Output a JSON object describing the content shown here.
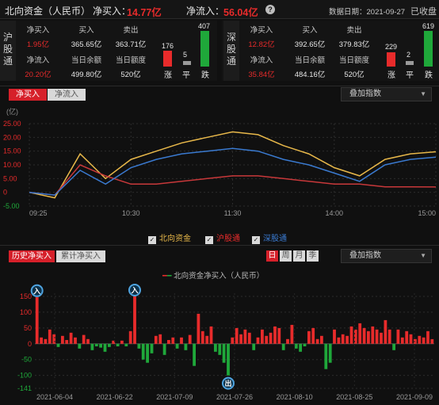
{
  "header": {
    "title": "北向资金（人民币）",
    "net_buy_label": "净买入：",
    "net_buy_value": "14.77亿",
    "net_inflow_label": "净流入：",
    "net_inflow_value": "56.04亿",
    "help_icon": "?",
    "date_label": "数据日期：2021-09-27",
    "status": "已收盘"
  },
  "sh": {
    "label": "沪股通",
    "net_buy_label": "净买入",
    "net_buy_value": "1.95亿",
    "buy_label": "买入",
    "buy_value": "365.65亿",
    "sell_label": "卖出",
    "sell_value": "363.71亿",
    "net_inflow_label": "净流入",
    "net_inflow_value": "20.20亿",
    "balance_label": "当日余额",
    "balance_value": "499.80亿",
    "quota_label": "当日额度",
    "quota_value": "520亿",
    "up_count": "176",
    "flat_count": "5",
    "down_count": "407",
    "up_label": "涨",
    "flat_label": "平",
    "down_label": "跌"
  },
  "sz": {
    "label": "深股通",
    "net_buy_label": "净买入",
    "net_buy_value": "12.82亿",
    "buy_label": "买入",
    "buy_value": "392.65亿",
    "sell_label": "卖出",
    "sell_value": "379.83亿",
    "net_inflow_label": "净流入",
    "net_inflow_value": "35.84亿",
    "balance_label": "当日余额",
    "balance_value": "484.16亿",
    "quota_label": "当日额度",
    "quota_value": "520亿",
    "up_count": "229",
    "flat_count": "2",
    "down_count": "619",
    "up_label": "涨",
    "flat_label": "平",
    "down_label": "跌"
  },
  "intraday": {
    "tab_net_buy": "净买入",
    "tab_net_inflow": "净流入",
    "overlay_label": "叠加指数",
    "unit": "(亿)",
    "legend": {
      "north": "北向资金",
      "sh": "沪股通",
      "sz": "深股通"
    }
  },
  "history": {
    "tab_history": "历史净买入",
    "tab_cumulative": "累计净买入",
    "period_day": "日",
    "period_week": "周",
    "period_month": "月",
    "period_quarter": "季",
    "overlay_label": "叠加指数",
    "legend": "北向资金净买入（人民币）",
    "marker_in": "入",
    "marker_out": "出"
  },
  "colors": {
    "red": "#e82b2b",
    "green": "#1fa83a",
    "gold": "#e8b84a",
    "blue": "#3a7ad0",
    "darkred": "#c8383a"
  },
  "chart_data": [
    {
      "type": "line",
      "ylim": [
        -5,
        25
      ],
      "yticks": [
        "25.00",
        "20.00",
        "15.00",
        "10.00",
        "5.00",
        "0",
        "-5.00"
      ],
      "xticks": [
        "09:25",
        "10:30",
        "11:30",
        "14:00",
        "15:00"
      ],
      "x": [
        "09:25",
        "09:40",
        "09:55",
        "10:10",
        "10:30",
        "10:45",
        "11:00",
        "11:15",
        "11:30",
        "13:15",
        "13:30",
        "13:45",
        "14:00",
        "14:15",
        "14:30",
        "14:45",
        "15:00"
      ],
      "series": [
        {
          "name": "北向资金",
          "values": [
            0,
            -2,
            14,
            5,
            12,
            15,
            18,
            20,
            22,
            21,
            17,
            14,
            9,
            6,
            12,
            14,
            14.77
          ]
        },
        {
          "name": "沪股通",
          "values": [
            0,
            -1,
            10,
            6,
            3,
            3,
            4,
            5,
            6,
            6,
            5,
            4,
            3,
            3,
            2,
            2,
            1.95
          ]
        },
        {
          "name": "深股通",
          "values": [
            0,
            -1,
            8,
            3,
            9,
            12,
            14,
            15,
            16,
            15,
            12,
            10,
            7,
            4,
            10,
            12,
            12.82
          ]
        }
      ]
    },
    {
      "type": "bar",
      "yticks": [
        "150",
        "100",
        "50",
        "0",
        "-50",
        "-100",
        "-141"
      ],
      "xticks": [
        "2021-06-04",
        "2021-06-22",
        "2021-07-09",
        "2021-07-26",
        "2021-08-10",
        "2021-08-25",
        "2021-09-09"
      ],
      "series": [
        {
          "name": "北向资金净买入（人民币）",
          "values": [
            148,
            20,
            15,
            45,
            30,
            -10,
            25,
            12,
            35,
            20,
            -15,
            28,
            15,
            -20,
            -8,
            -12,
            -25,
            -10,
            10,
            -8,
            10,
            -8,
            40,
            150,
            -15,
            -50,
            -60,
            -30,
            25,
            30,
            -35,
            12,
            20,
            -15,
            20,
            -20,
            28,
            -70,
            95,
            40,
            25,
            55,
            -25,
            -35,
            -60,
            -100,
            20,
            50,
            30,
            45,
            35,
            -20,
            20,
            45,
            25,
            35,
            55,
            50,
            -20,
            15,
            60,
            -15,
            -25,
            -8,
            40,
            50,
            15,
            25,
            -80,
            -60,
            45,
            20,
            30,
            25,
            55,
            45,
            65,
            50,
            40,
            55,
            45,
            35,
            75,
            45,
            -20,
            45,
            20,
            40,
            30,
            15,
            25,
            20,
            40,
            14.77
          ]
        }
      ]
    }
  ]
}
